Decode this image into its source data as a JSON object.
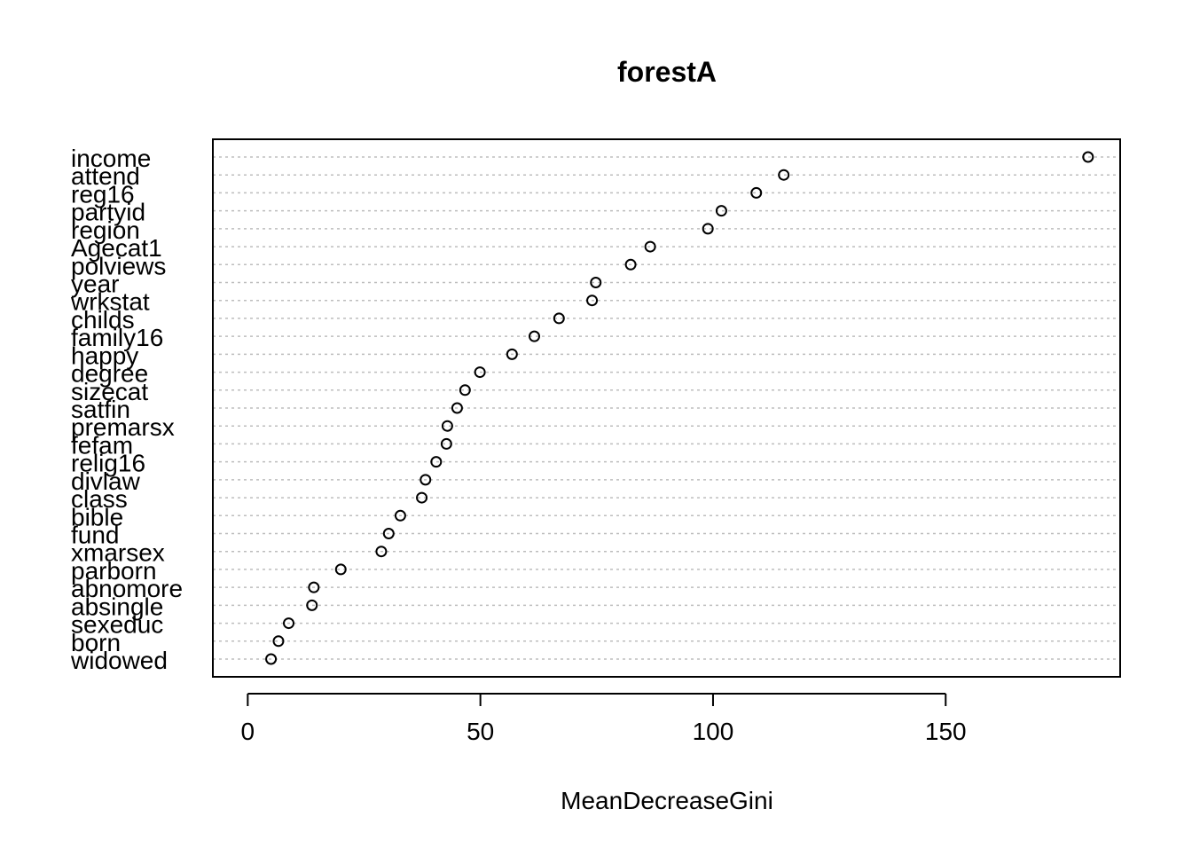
{
  "chart_data": {
    "type": "scatter",
    "title": "forestA",
    "xlabel": "MeanDecreaseGini",
    "ylabel": "",
    "xlim": [
      -7.5,
      187.5
    ],
    "xticks": [
      0,
      50,
      100,
      150
    ],
    "xtick_labels": [
      "0",
      "50",
      "100",
      "150"
    ],
    "grid": "dotted horizontal lines per category",
    "categories": [
      "income",
      "attend",
      "reg16",
      "partyid",
      "region",
      "Agecat1",
      "polviews",
      "year",
      "wrkstat",
      "childs",
      "family16",
      "happy",
      "degree",
      "sizecat",
      "satfin",
      "premarsx",
      "fefam",
      "relig16",
      "divlaw",
      "class",
      "bible",
      "fund",
      "xmarsex",
      "parborn",
      "abnomore",
      "absingle",
      "sexeduc",
      "born",
      "widowed"
    ],
    "values": [
      180.6,
      115.2,
      109.3,
      101.8,
      98.9,
      86.5,
      82.3,
      74.8,
      74.0,
      66.9,
      61.6,
      56.8,
      49.9,
      46.7,
      45.0,
      42.9,
      42.7,
      40.5,
      38.2,
      37.4,
      32.8,
      30.3,
      28.7,
      20.0,
      14.2,
      13.8,
      8.8,
      6.6,
      5.0
    ]
  }
}
